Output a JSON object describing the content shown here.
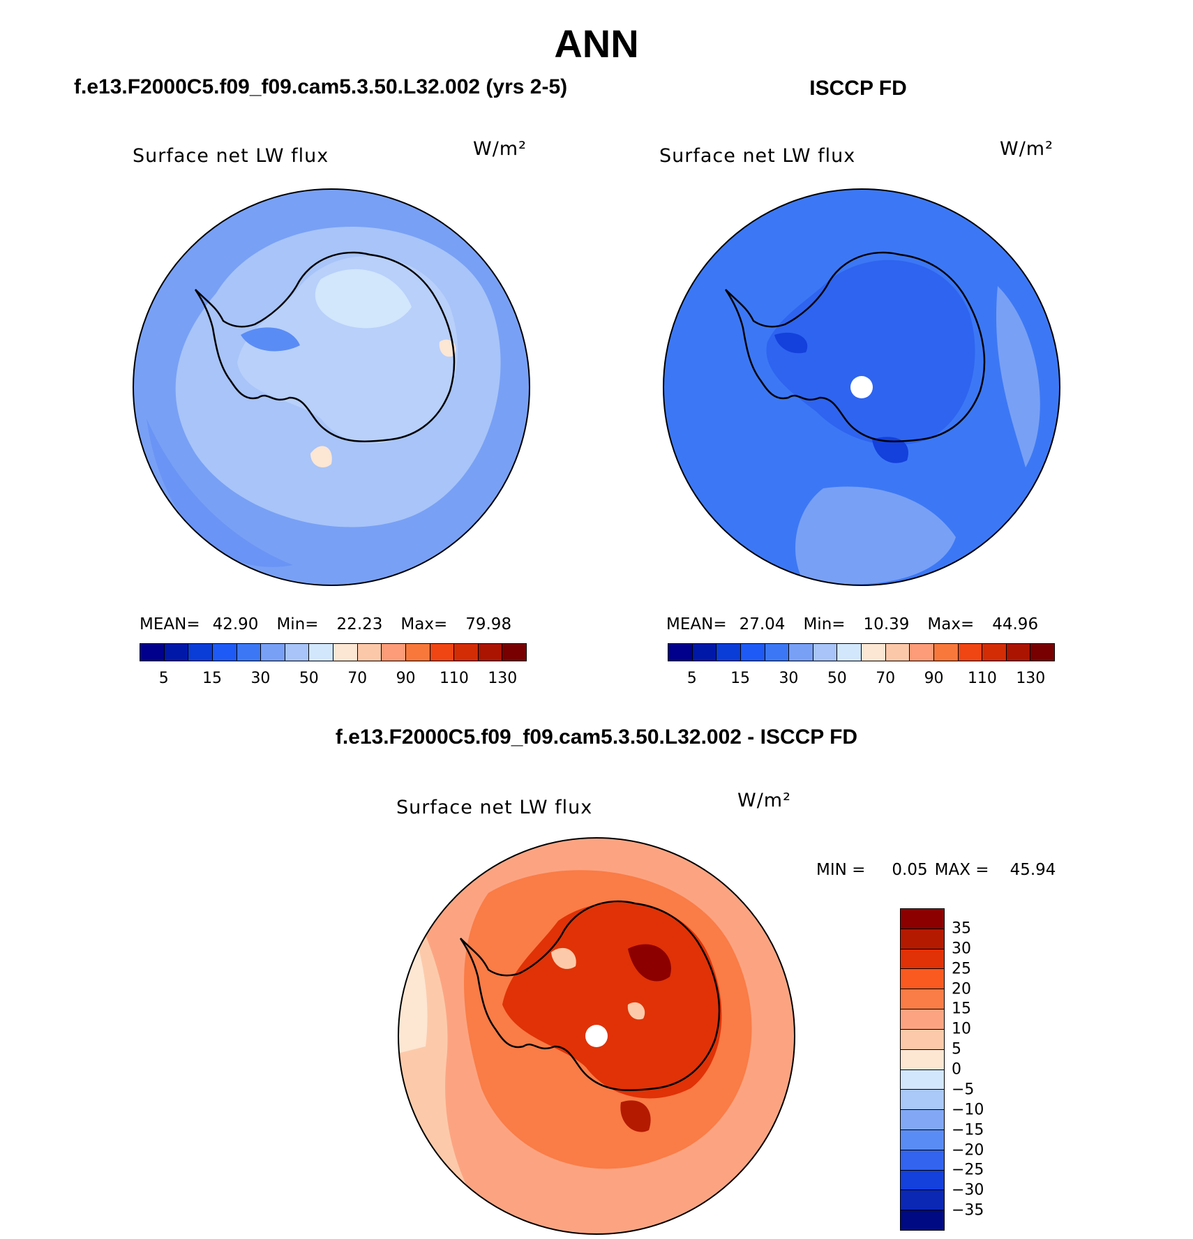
{
  "title": "ANN",
  "panels": [
    {
      "header": "f.e13.F2000C5.f09_f09.cam5.3.50.L32.002 (yrs 2-5)",
      "variable": "Surface net LW flux",
      "units": "W/m²",
      "stats": {
        "mean_label": "MEAN=",
        "mean": "42.90",
        "min_label": "Min=",
        "min": "22.23",
        "max_label": "Max=",
        "max": "79.98"
      },
      "palette": "model"
    },
    {
      "header": "ISCCP FD",
      "variable": "Surface net LW flux",
      "units": "W/m²",
      "stats": {
        "mean_label": "MEAN=",
        "mean": "27.04",
        "min_label": "Min=",
        "min": "10.39",
        "max_label": "Max=",
        "max": "44.96"
      },
      "palette": "obs"
    }
  ],
  "horizontal_colorbar": {
    "colors": [
      "#00008c",
      "#0018a8",
      "#0a3cd8",
      "#1e5af5",
      "#3c78f5",
      "#78a0f5",
      "#a8c4f8",
      "#d2e6fc",
      "#fce6d4",
      "#fcc8aa",
      "#fc9c78",
      "#f8783c",
      "#f04614",
      "#d22d05",
      "#aa1400",
      "#780000"
    ],
    "tick_labels": [
      "5",
      "15",
      "30",
      "50",
      "70",
      "90",
      "110",
      "130"
    ]
  },
  "difference": {
    "header": "f.e13.F2000C5.f09_f09.cam5.3.50.L32.002 - ISCCP FD",
    "variable": "Surface net LW flux",
    "units": "W/m²",
    "min_label": "MIN =",
    "min": "0.05",
    "max_label": "MAX =",
    "max": "45.94"
  },
  "vertical_colorbar": {
    "colors_top_to_bottom": [
      "#8c0000",
      "#b41a00",
      "#e03206",
      "#fa5a20",
      "#fa7c46",
      "#fca482",
      "#fccaaa",
      "#fde6d2",
      "#d2e6fc",
      "#aac8f8",
      "#82a8f5",
      "#5a8cf5",
      "#3264f0",
      "#1440dc",
      "#0a28b4",
      "#000a82"
    ],
    "tick_labels_top_to_bottom": [
      "35",
      "30",
      "25",
      "20",
      "15",
      "10",
      "5",
      "0",
      "−5",
      "−10",
      "−15",
      "−20",
      "−25",
      "−30",
      "−35"
    ]
  }
}
